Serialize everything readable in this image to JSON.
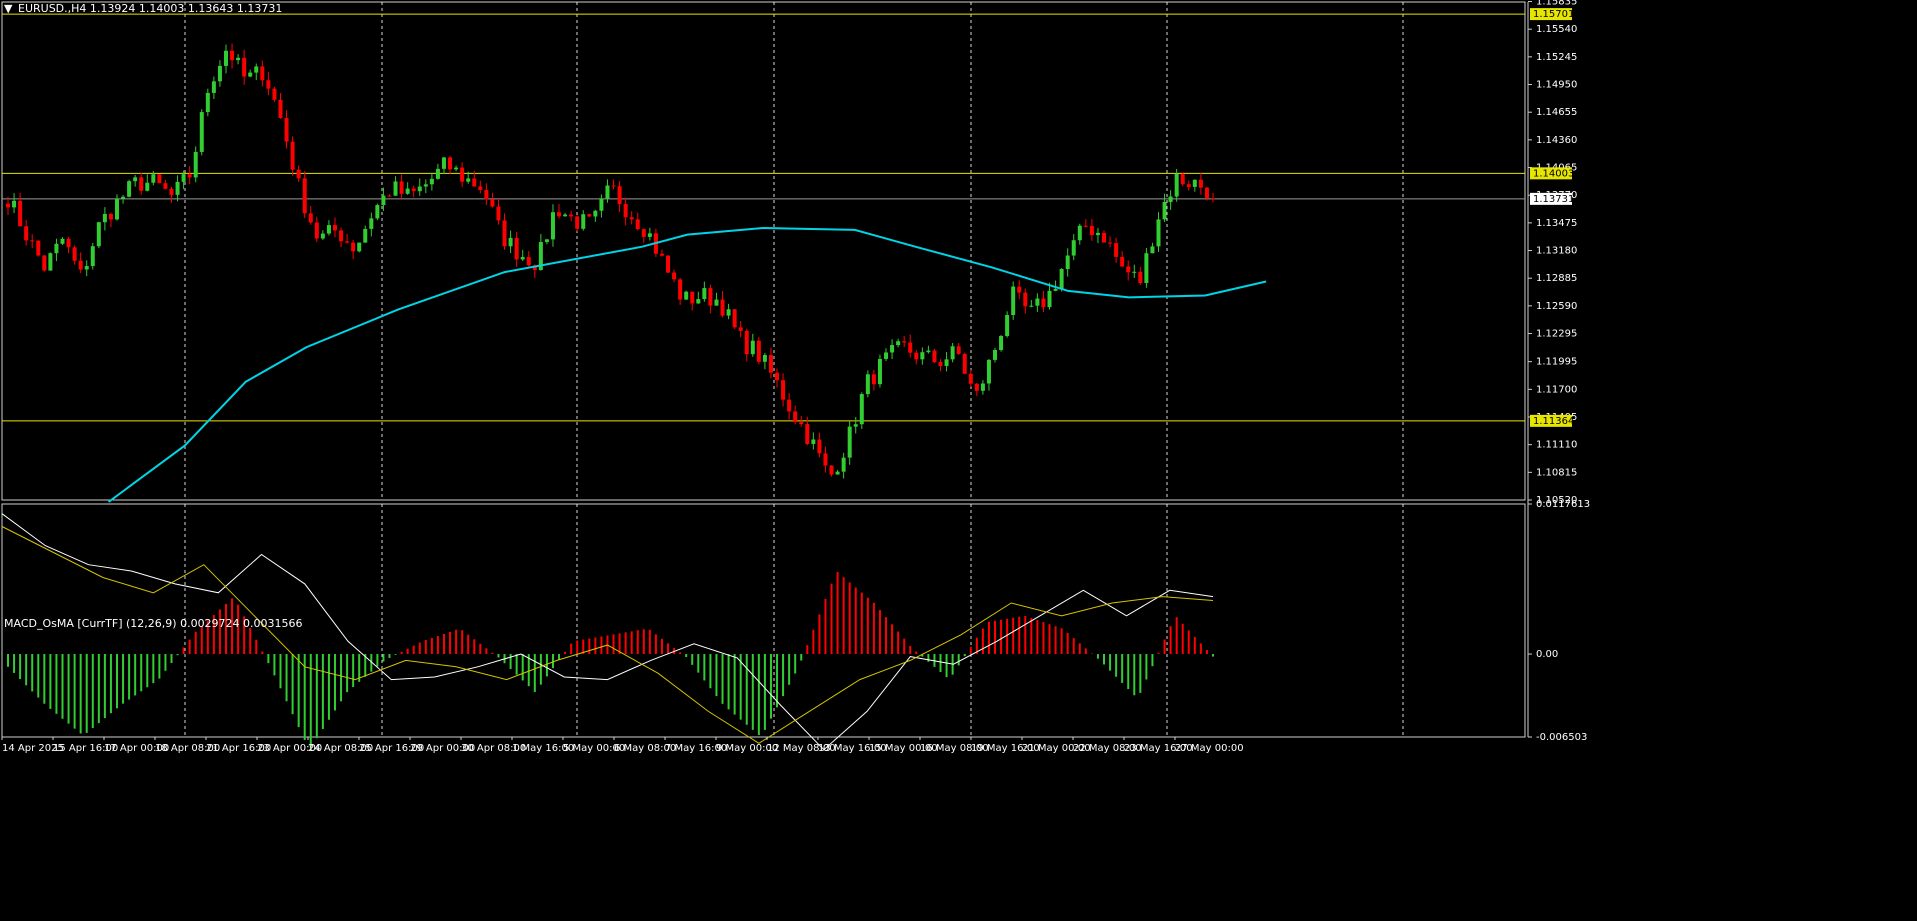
{
  "header": {
    "symbol_line": "EURUSD.,H4  1.13924 1.14003 1.13643 1.13731"
  },
  "subwindow": {
    "title": "MACD_OsMA [CurrTF] (12,26,9) 0.0029724 0.0031566"
  },
  "colors": {
    "background": "#000000",
    "bull": "#32cd32",
    "bear": "#ff0000",
    "ma": "#00d4e6",
    "hline": "#e6e600",
    "grid": "#ffffff",
    "macd": "#ffffff",
    "signal": "#d4c400"
  },
  "chart_data": [
    {
      "type": "candlestick",
      "series_name": "EURUSD.,H4",
      "ylim": [
        1.1052,
        1.1583
      ],
      "y_ticks": [
        "1.15835",
        "1.15540",
        "1.15245",
        "1.14950",
        "1.14655",
        "1.14360",
        "1.14065",
        "1.13770",
        "1.13475",
        "1.13180",
        "1.12885",
        "1.12590",
        "1.12295",
        "1.11995",
        "1.11700",
        "1.11405",
        "1.11110",
        "1.10815",
        "1.10520"
      ],
      "x_labels": [
        "14 Apr 2025",
        "15 Apr 16:00",
        "17 Apr 00:00",
        "18 Apr 08:00",
        "21 Apr 16:00",
        "23 Apr 00:00",
        "24 Apr 08:00",
        "25 Apr 16:00",
        "29 Apr 00:00",
        "30 Apr 08:00",
        "1 May 16:00",
        "5 May 00:00",
        "6 May 08:00",
        "7 May 16:00",
        "9 May 00:00",
        "12 May 08:00",
        "13 May 16:00",
        "15 May 00:00",
        "16 May 08:00",
        "19 May 16:00",
        "21 May 00:00",
        "22 May 08:00",
        "23 May 16:00",
        "27 May 00:00"
      ],
      "horizontal_levels": [
        {
          "value": 1.15701,
          "label": "1.15701"
        },
        {
          "value": 1.14003,
          "label": "1.14003"
        },
        {
          "value": 1.11364,
          "label": "1.11364"
        }
      ],
      "last_price": {
        "value": 1.13731,
        "label": "1.13731"
      },
      "close_anchors": [
        1.1375,
        1.1335,
        1.13,
        1.133,
        1.129,
        1.1345,
        1.137,
        1.139,
        1.139,
        1.1375,
        1.14,
        1.1495,
        1.1535,
        1.15,
        1.151,
        1.1455,
        1.138,
        1.133,
        1.134,
        1.132,
        1.136,
        1.1385,
        1.1375,
        1.139,
        1.141,
        1.1395,
        1.1385,
        1.1335,
        1.1315,
        1.1305,
        1.1365,
        1.135,
        1.1345,
        1.1385,
        1.136,
        1.134,
        1.13,
        1.1265,
        1.127,
        1.1265,
        1.1225,
        1.121,
        1.118,
        1.1145,
        1.1115,
        1.1075,
        1.1115,
        1.1175,
        1.12,
        1.1215,
        1.1205,
        1.12,
        1.121,
        1.116,
        1.121,
        1.127,
        1.125,
        1.127,
        1.131,
        1.1345,
        1.1335,
        1.13,
        1.1285,
        1.1355,
        1.1395,
        1.139,
        1.138
      ],
      "moving_average": [
        {
          "x": 0.07,
          "y": 1.105
        },
        {
          "x": 0.12,
          "y": 1.111
        },
        {
          "x": 0.16,
          "y": 1.1178
        },
        {
          "x": 0.2,
          "y": 1.1215
        },
        {
          "x": 0.26,
          "y": 1.1255
        },
        {
          "x": 0.33,
          "y": 1.1295
        },
        {
          "x": 0.42,
          "y": 1.1322
        },
        {
          "x": 0.45,
          "y": 1.1335
        },
        {
          "x": 0.5,
          "y": 1.1342
        },
        {
          "x": 0.56,
          "y": 1.134
        },
        {
          "x": 0.6,
          "y": 1.1322
        },
        {
          "x": 0.65,
          "y": 1.13
        },
        {
          "x": 0.7,
          "y": 1.1275
        },
        {
          "x": 0.74,
          "y": 1.1268
        },
        {
          "x": 0.79,
          "y": 1.127
        },
        {
          "x": 0.83,
          "y": 1.1285
        }
      ]
    },
    {
      "type": "histogram+lines",
      "series_name": "MACD_OsMA [CurrTF] (12,26,9)",
      "ylim": [
        -0.006503,
        0.011761
      ],
      "y_ticks": [
        "0.0117613",
        "0.00",
        "-0.006503"
      ],
      "osma_anchors": [
        -0.001,
        -0.004,
        -0.0064,
        -0.004,
        -0.002,
        0.0018,
        0.0045,
        -0.0012,
        -0.0075,
        -0.003,
        -0.0005,
        0.001,
        0.002,
        -0.0002,
        -0.003,
        0.001,
        0.0015,
        0.002,
        -0.0002,
        -0.004,
        -0.0065,
        -0.001,
        0.0065,
        0.004,
        0.0005,
        -0.002,
        0.0025,
        0.003,
        0.002,
        -0.0005,
        -0.0035,
        0.003,
        -0.0002
      ],
      "macd_anchors": [
        0.011,
        0.0085,
        0.007,
        0.0065,
        0.0055,
        0.0048,
        0.0078,
        0.0055,
        0.001,
        -0.002,
        -0.0018,
        -0.001,
        0.0,
        -0.0018,
        -0.002,
        -0.0005,
        0.0008,
        -0.0003,
        -0.004,
        -0.0075,
        -0.0045,
        -0.0002,
        -0.0008,
        0.001,
        0.003,
        0.005,
        0.003,
        0.005,
        0.0045
      ],
      "signal_anchors": [
        0.01,
        0.008,
        0.006,
        0.0048,
        0.007,
        0.003,
        -0.001,
        -0.002,
        -0.0005,
        -0.001,
        -0.002,
        -0.0005,
        0.0007,
        -0.0015,
        -0.0045,
        -0.007,
        -0.0045,
        -0.002,
        -0.0005,
        0.0015,
        0.004,
        0.003,
        0.004,
        0.0045,
        0.0042
      ]
    }
  ]
}
